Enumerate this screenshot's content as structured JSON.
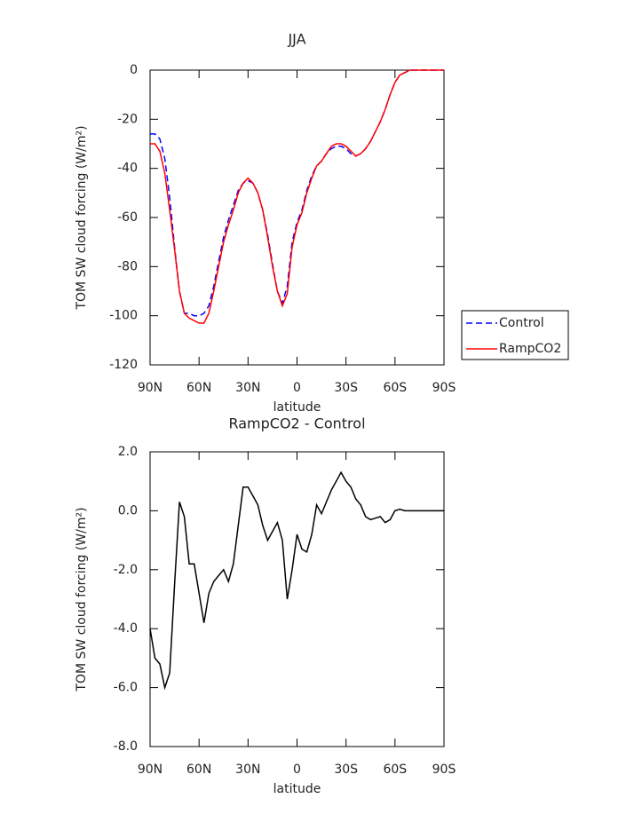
{
  "chart_data": [
    {
      "type": "line",
      "title": "JJA",
      "xlabel": "latitude",
      "ylabel": "TOM SW cloud forcing (W/m²)",
      "x": [
        90,
        87,
        84,
        81,
        78,
        75,
        72,
        69,
        66,
        63,
        60,
        57,
        54,
        51,
        48,
        45,
        42,
        39,
        36,
        33,
        30,
        27,
        24,
        21,
        18,
        15,
        12,
        9,
        6,
        3,
        0,
        -3,
        -6,
        -9,
        -12,
        -15,
        -18,
        -21,
        -24,
        -27,
        -30,
        -33,
        -36,
        -39,
        -42,
        -45,
        -48,
        -51,
        -54,
        -57,
        -60,
        -63,
        -66,
        -69,
        -72,
        -75,
        -78,
        -81,
        -84,
        -87,
        -90
      ],
      "series": [
        {
          "name": "Control",
          "color": "#0000ff",
          "line_style": "dashed",
          "values": [
            -26,
            -26,
            -28,
            -36,
            -52,
            -72,
            -90,
            -99,
            -99,
            -100,
            -100,
            -99,
            -96,
            -88,
            -78,
            -68,
            -61,
            -55,
            -49,
            -46,
            -45,
            -46,
            -50,
            -57,
            -67,
            -79,
            -90,
            -95,
            -88,
            -70,
            -62,
            -57,
            -49,
            -43,
            -39,
            -37,
            -34,
            -32,
            -31,
            -31,
            -32,
            -34,
            -35,
            -34,
            -32,
            -29,
            -25,
            -21,
            -16,
            -10,
            -5,
            -2,
            -1,
            0,
            0,
            0,
            0,
            0,
            0,
            0,
            0
          ]
        },
        {
          "name": "RampCO2",
          "color": "#ff0000",
          "line_style": "solid",
          "values": [
            -30,
            -30,
            -33,
            -42,
            -57,
            -73,
            -90,
            -99,
            -101,
            -102,
            -103,
            -103,
            -99,
            -90,
            -80,
            -70,
            -63,
            -57,
            -50,
            -46,
            -44,
            -46,
            -50,
            -57,
            -68,
            -80,
            -90,
            -96,
            -91,
            -72,
            -63,
            -58,
            -50,
            -44,
            -39,
            -37,
            -34,
            -31,
            -30,
            -30,
            -31,
            -33,
            -35,
            -34,
            -32,
            -29,
            -25,
            -21,
            -16,
            -10,
            -5,
            -2,
            -1,
            0,
            0,
            0,
            0,
            0,
            0,
            0,
            0
          ]
        }
      ],
      "xlim": [
        90,
        -90
      ],
      "xticks": [
        {
          "value": 90,
          "label": "90N"
        },
        {
          "value": 60,
          "label": "60N"
        },
        {
          "value": 30,
          "label": "30N"
        },
        0,
        {
          "value": -30,
          "label": "30S"
        },
        {
          "value": -60,
          "label": "60S"
        },
        {
          "value": -90,
          "label": "90S"
        }
      ],
      "ylim": [
        -120,
        0
      ],
      "yticks": [
        -120,
        -100,
        -80,
        -60,
        -40,
        -20,
        0
      ],
      "legend": "right"
    },
    {
      "type": "line",
      "title": "RampCO2 - Control",
      "xlabel": "latitude",
      "ylabel": "TOM SW cloud forcing (W/m²)",
      "x": [
        90,
        87,
        84,
        81,
        78,
        75,
        72,
        69,
        66,
        63,
        60,
        57,
        54,
        51,
        48,
        45,
        42,
        39,
        36,
        33,
        30,
        27,
        24,
        21,
        18,
        15,
        12,
        9,
        6,
        3,
        0,
        -3,
        -6,
        -9,
        -12,
        -15,
        -18,
        -21,
        -24,
        -27,
        -30,
        -33,
        -36,
        -39,
        -42,
        -45,
        -48,
        -51,
        -54,
        -57,
        -60,
        -63,
        -66,
        -69,
        -72,
        -75,
        -78,
        -81,
        -84,
        -87,
        -90
      ],
      "values": [
        -4.0,
        -5.0,
        -5.2,
        -6.0,
        -5.5,
        -2.5,
        0.3,
        -0.2,
        -1.8,
        -1.8,
        -2.8,
        -3.8,
        -2.8,
        -2.4,
        -2.2,
        -2.0,
        -2.4,
        -1.8,
        -0.5,
        0.8,
        0.8,
        0.5,
        0.2,
        -0.5,
        -1.0,
        -0.7,
        -0.4,
        -1.0,
        -3.0,
        -2.0,
        -0.8,
        -1.3,
        -1.4,
        -0.8,
        0.2,
        -0.1,
        0.3,
        0.7,
        1.0,
        1.3,
        1.0,
        0.8,
        0.4,
        0.2,
        -0.2,
        -0.3,
        -0.25,
        -0.2,
        -0.4,
        -0.3,
        0,
        0.05,
        0,
        0,
        0,
        0,
        0,
        0,
        0,
        0,
        0
      ],
      "color": "#000000",
      "xlim": [
        90,
        -90
      ],
      "xticks": [
        {
          "value": 90,
          "label": "90N"
        },
        {
          "value": 60,
          "label": "60N"
        },
        {
          "value": 30,
          "label": "30N"
        },
        0,
        {
          "value": -30,
          "label": "30S"
        },
        {
          "value": -60,
          "label": "60S"
        },
        {
          "value": -90,
          "label": "90S"
        }
      ],
      "ylim": [
        -8,
        2
      ],
      "yticks": [
        {
          "value": -8,
          "label": "-8.0"
        },
        {
          "value": -6,
          "label": "-6.0"
        },
        {
          "value": -4,
          "label": "-4.0"
        },
        {
          "value": -2,
          "label": "-2.0"
        },
        {
          "value": 0,
          "label": "0.0"
        },
        {
          "value": 2,
          "label": "2.0"
        }
      ]
    }
  ]
}
